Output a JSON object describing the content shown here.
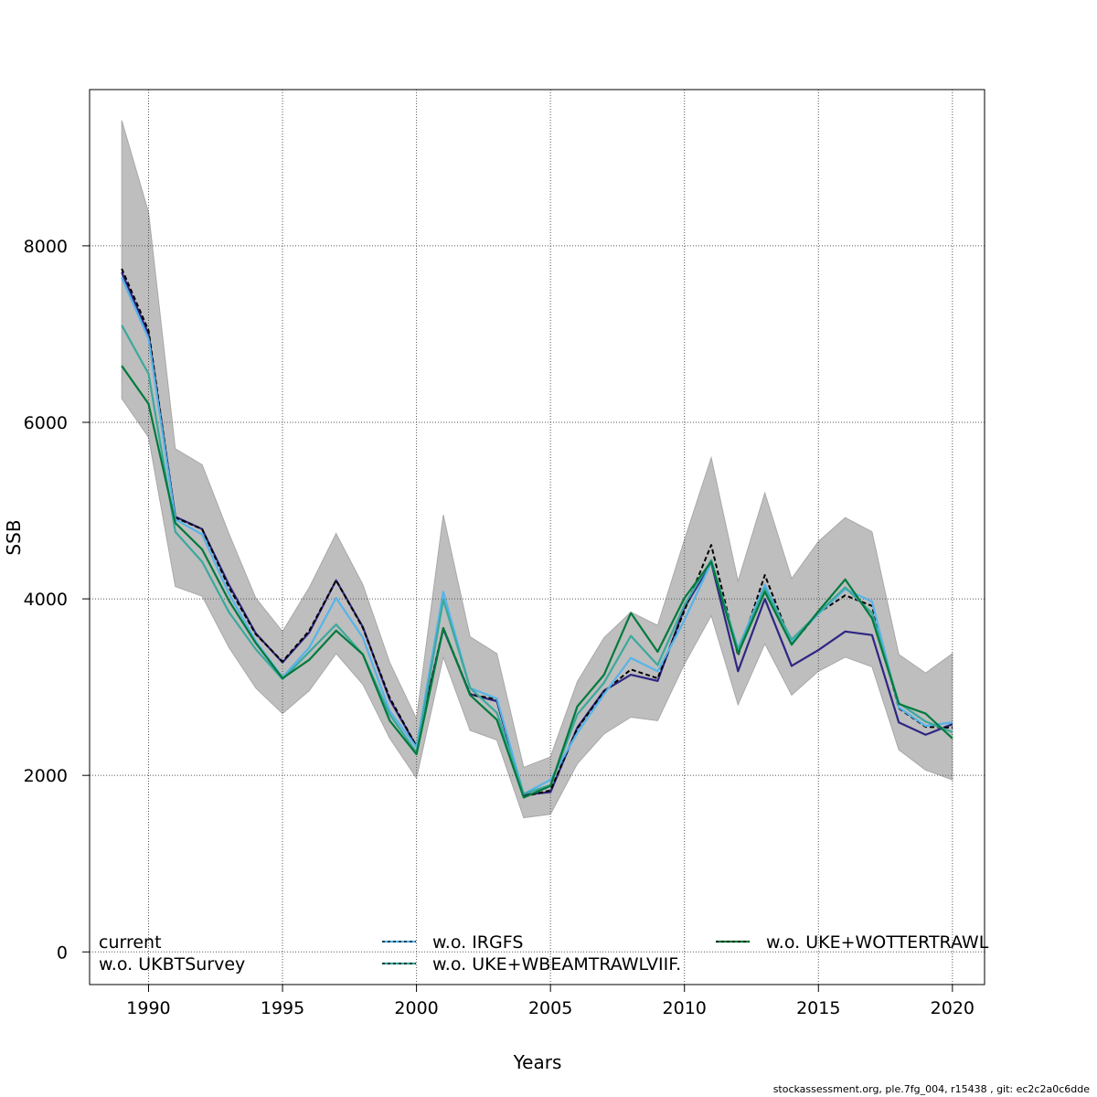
{
  "chart_data": {
    "type": "line",
    "xlabel": "Years",
    "ylabel": "SSB",
    "xlim": [
      1987.8,
      2021.2
    ],
    "ylim": [
      -370,
      9770
    ],
    "x_ticks": [
      1990,
      1995,
      2000,
      2005,
      2010,
      2015,
      2020
    ],
    "y_ticks": [
      0,
      2000,
      4000,
      6000,
      8000
    ],
    "grid": true,
    "years": [
      1989,
      1990,
      1991,
      1992,
      1993,
      1994,
      1995,
      1996,
      1997,
      1998,
      1999,
      2000,
      2001,
      2002,
      2003,
      2004,
      2005,
      2006,
      2007,
      2008,
      2009,
      2010,
      2011,
      2012,
      2013,
      2014,
      2015,
      2016,
      2017,
      2018,
      2019,
      2020
    ],
    "band": {
      "upper": [
        9420,
        8380,
        5700,
        5520,
        4740,
        4010,
        3630,
        4130,
        4740,
        4160,
        3280,
        2640,
        4950,
        3570,
        3380,
        2090,
        2210,
        3060,
        3560,
        3850,
        3700,
        4670,
        5600,
        4200,
        5200,
        4230,
        4650,
        4920,
        4760,
        3370,
        3160,
        3380
      ],
      "lower": [
        6270,
        5830,
        4140,
        4030,
        3450,
        2990,
        2700,
        2960,
        3380,
        3030,
        2420,
        1970,
        3340,
        2510,
        2400,
        1520,
        1560,
        2130,
        2470,
        2660,
        2620,
        3260,
        3810,
        2800,
        3490,
        2910,
        3180,
        3340,
        3230,
        2290,
        2060,
        1950
      ]
    },
    "legend": {
      "rows": [
        [
          "current",
          "w.o. IRGFS",
          "w.o. UKE+WOTTERTRAWL"
        ],
        [
          "w.o. UKBTSurvey",
          "w.o. UKE+WBEAMTRAWLVIIF.",
          ""
        ]
      ]
    },
    "series": [
      {
        "name": "current",
        "color": "#000000",
        "dashed": true,
        "values": [
          7740,
          7040,
          4920,
          4790,
          4130,
          3600,
          3290,
          3640,
          4210,
          3670,
          2880,
          2330,
          3670,
          2920,
          2860,
          1760,
          1830,
          2530,
          2950,
          3200,
          3100,
          3870,
          4610,
          3360,
          4270,
          3490,
          3840,
          4040,
          3920,
          2760,
          2550,
          2540
        ]
      },
      {
        "name": "w.o. IRGFS",
        "color": "#56b4e9",
        "values": [
          7640,
          6950,
          4900,
          4730,
          4060,
          3520,
          3110,
          3450,
          4010,
          3560,
          2730,
          2320,
          4080,
          2990,
          2870,
          1790,
          1950,
          2480,
          2920,
          3330,
          3180,
          3760,
          4410,
          3440,
          4160,
          3520,
          3830,
          4110,
          3970,
          2770,
          2560,
          2600
        ]
      },
      {
        "name": "w.o. UKE+WOTTERTRAWL",
        "color": "#007a3d",
        "values": [
          6640,
          6210,
          4860,
          4560,
          3980,
          3500,
          3100,
          3310,
          3640,
          3370,
          2620,
          2240,
          3670,
          2910,
          2630,
          1750,
          1880,
          2780,
          3140,
          3840,
          3400,
          4010,
          4420,
          3380,
          4080,
          3480,
          3860,
          4220,
          3780,
          2810,
          2700,
          2420
        ]
      },
      {
        "name": "w.o. UKBTSurvey",
        "color": "#2e2683",
        "values": [
          7700,
          7000,
          4930,
          4790,
          4160,
          3610,
          3280,
          3620,
          4210,
          3680,
          2860,
          2330,
          3660,
          2920,
          2840,
          1780,
          1810,
          2540,
          2960,
          3140,
          3070,
          3900,
          4410,
          3180,
          4000,
          3240,
          3420,
          3630,
          3590,
          2600,
          2460,
          2580
        ]
      },
      {
        "name": "w.o. UKE+WBEAMTRAWLVIIF.",
        "color": "#3ba99c",
        "values": [
          7100,
          6550,
          4760,
          4420,
          3850,
          3430,
          3090,
          3400,
          3710,
          3370,
          2690,
          2260,
          3990,
          2990,
          2710,
          1790,
          1890,
          2690,
          3050,
          3580,
          3250,
          3930,
          4440,
          3420,
          4120,
          3540,
          3840,
          4130,
          3840,
          2820,
          2610,
          2490
        ]
      }
    ]
  },
  "footer": "stockassessment.org, ple.7fg_004, r15438 , git: ec2c2a0c6dde"
}
